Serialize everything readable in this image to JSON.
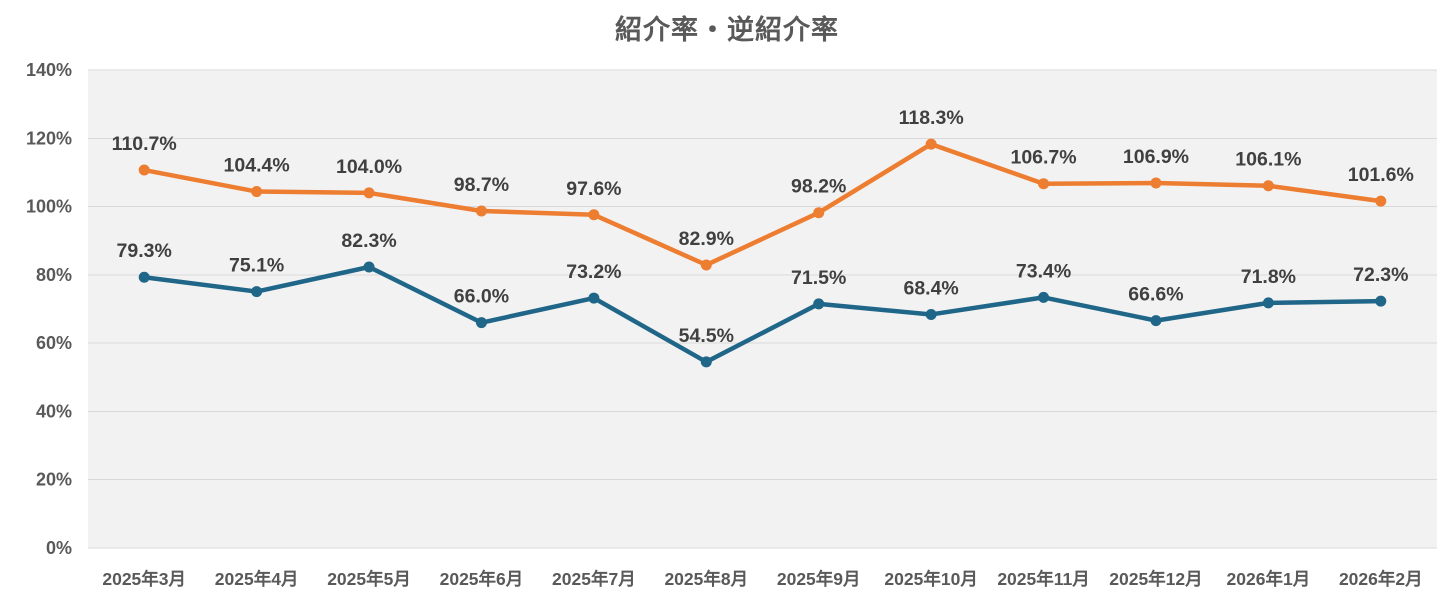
{
  "title": "紹介率・逆紹介率",
  "colors": {
    "title_text": "#595959",
    "axis_text": "#595959",
    "data_label_text": "#404040",
    "plot_background": "#F2F2F2",
    "gridline": "#D9D9D9",
    "series1_orange": "#ED7D31",
    "series2_blue": "#1F6688"
  },
  "chart_data": {
    "type": "line",
    "title": "紹介率・逆紹介率",
    "categories": [
      "2025年3月",
      "2025年4月",
      "2025年5月",
      "2025年6月",
      "2025年7月",
      "2025年8月",
      "2025年9月",
      "2025年10月",
      "2025年11月",
      "2025年12月",
      "2026年1月",
      "2026年2月"
    ],
    "series": [
      {
        "color": "#ED7D31",
        "values": [
          110.7,
          104.4,
          104.0,
          98.7,
          97.6,
          82.9,
          98.2,
          118.3,
          106.7,
          106.9,
          106.1,
          101.6
        ],
        "labels": [
          "110.7%",
          "104.4%",
          "104.0%",
          "98.7%",
          "97.6%",
          "82.9%",
          "98.2%",
          "118.3%",
          "106.7%",
          "106.9%",
          "106.1%",
          "101.6%"
        ]
      },
      {
        "color": "#1F6688",
        "values": [
          79.3,
          75.1,
          82.3,
          66.0,
          73.2,
          54.5,
          71.5,
          68.4,
          73.4,
          66.6,
          71.8,
          72.3
        ],
        "labels": [
          "79.3%",
          "75.1%",
          "82.3%",
          "66.0%",
          "73.2%",
          "54.5%",
          "71.5%",
          "68.4%",
          "73.4%",
          "66.6%",
          "71.8%",
          "72.3%"
        ]
      }
    ],
    "ylim": [
      0,
      140
    ],
    "ytick_step": 20,
    "ytick_labels": [
      "0%",
      "20%",
      "40%",
      "60%",
      "80%",
      "100%",
      "120%",
      "140%"
    ],
    "xlabel": "",
    "ylabel": "",
    "grid": true,
    "legend": "none",
    "data_labels": true
  }
}
